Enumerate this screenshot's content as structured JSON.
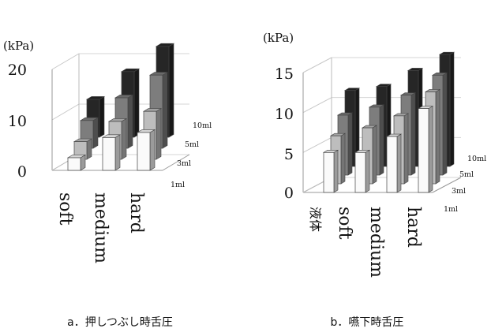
{
  "chart_data": [
    {
      "type": "bar",
      "unit_label": "(kPa)",
      "yticks": [
        "20",
        "10",
        "0"
      ],
      "ylim": [
        0,
        20
      ],
      "categories": [
        "soft",
        "medium",
        "hard"
      ],
      "series": [
        {
          "name": "1ml",
          "values": [
            2.5,
            6.5,
            7.5
          ]
        },
        {
          "name": "3ml",
          "values": [
            3.5,
            7.5,
            9.5
          ]
        },
        {
          "name": "5ml",
          "values": [
            5.5,
            10,
            14.5
          ]
        },
        {
          "name": "10ml",
          "values": [
            7.5,
            13,
            18
          ]
        }
      ],
      "colors": [
        "#fafafa",
        "#bdbdbd",
        "#7d7d7d",
        "#262626"
      ],
      "caption": "a．押しつぶし時舌圧"
    },
    {
      "type": "bar",
      "unit_label": "(kPa)",
      "yticks": [
        "15",
        "10",
        "5",
        "0"
      ],
      "ylim": [
        0,
        15
      ],
      "categories": [
        "液体",
        "soft",
        "medium",
        "hard"
      ],
      "series": [
        {
          "name": "1ml",
          "values": [
            5,
            5,
            7,
            10.5
          ]
        },
        {
          "name": "3ml",
          "values": [
            6,
            7,
            8.5,
            11.5
          ]
        },
        {
          "name": "5ml",
          "values": [
            7.5,
            8.5,
            10,
            12.5
          ]
        },
        {
          "name": "10ml",
          "values": [
            9.5,
            10,
            12,
            14
          ]
        }
      ],
      "colors": [
        "#fafafa",
        "#bdbdbd",
        "#7d7d7d",
        "#262626"
      ],
      "caption": "b．嚥下時舌圧"
    }
  ]
}
